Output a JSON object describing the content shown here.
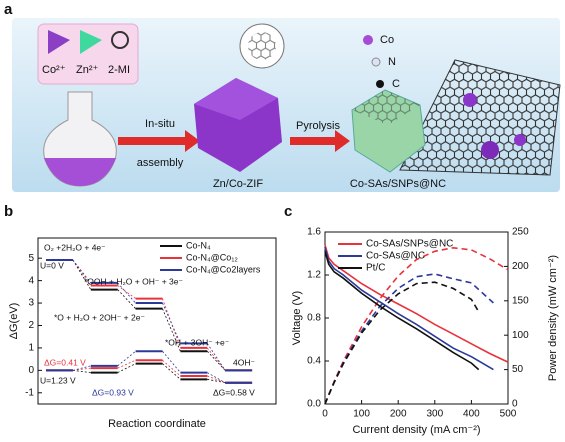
{
  "figure": {
    "panel_a": {
      "label": "a",
      "ion_co": "Co²⁺",
      "ion_zn": "Zn²⁺",
      "linker": "2-MI",
      "step1_top": "In-situ",
      "step1_bottom": "assembly",
      "zif": "Zn/Co-ZIF",
      "step2": "Pyrolysis",
      "product": "Co-SAs/SNPs@NC",
      "legend_co": "Co",
      "legend_n": "N",
      "legend_c": "C"
    }
  },
  "chart_data": [
    {
      "type": "step",
      "label": "b",
      "xlabel": "Reaction coordinate",
      "ylabel": "ΔG(eV)",
      "ylim": [
        -1.5,
        5.9
      ],
      "yticks": [
        -1,
        0,
        1,
        2,
        3,
        4,
        5
      ],
      "series": [
        {
          "name": "Co-N₄",
          "color": "#111111",
          "values": [
            4.92,
            3.6,
            2.75,
            0.85,
            0
          ],
          "values_u123": [
            0,
            -0.1,
            0.3,
            -0.4,
            -0.55
          ]
        },
        {
          "name": "Co-N₄@Co₁₂",
          "color": "#e8323c",
          "values": [
            4.92,
            3.78,
            3.2,
            1.0,
            0
          ],
          "values_u123": [
            0,
            0.1,
            0.45,
            -0.25,
            -0.55
          ]
        },
        {
          "name": "Co-N₄@Co2layers",
          "color": "#2b3a9a",
          "values": [
            4.92,
            3.9,
            3.0,
            1.2,
            0
          ],
          "values_u123": [
            0,
            0.2,
            0.85,
            -0.1,
            -0.55
          ]
        }
      ],
      "annotations": [
        {
          "text": "O₂ +2H₂O + 4e⁻",
          "color": "#111111"
        },
        {
          "text": "U=0 V",
          "color": "#111111"
        },
        {
          "text": "*OOH + H₂O + OH⁻ + 3e⁻",
          "color": "#111111"
        },
        {
          "text": "*O + H₂O + 2OH⁻ + 2e⁻",
          "color": "#111111"
        },
        {
          "text": "*OH + 3OH⁻ +e⁻",
          "color": "#111111"
        },
        {
          "text": "4OH⁻",
          "color": "#111111"
        },
        {
          "text": "ΔG=0.41 V",
          "color": "#e8323c"
        },
        {
          "text": "ΔG=0.93 V",
          "color": "#2b3a9a"
        },
        {
          "text": "ΔG=0.58 V",
          "color": "#111111"
        },
        {
          "text": "U=1.23 V",
          "color": "#111111"
        }
      ]
    },
    {
      "type": "line",
      "label": "c",
      "xlabel": "Current density (mA cm⁻²)",
      "ylabel": "Voltage (V)",
      "y2label": "Power density (mW cm⁻²)",
      "xlim": [
        0,
        500
      ],
      "xticks": [
        0,
        100,
        200,
        300,
        400,
        500
      ],
      "ylim": [
        0,
        1.6
      ],
      "yticks": [
        {
          "value": 0,
          "label": "0.0"
        },
        0.4,
        0.8,
        1.2,
        1.6
      ],
      "y2lim": [
        0,
        250
      ],
      "y2ticks": [
        0,
        50,
        100,
        150,
        200,
        250
      ],
      "series": [
        {
          "name": "Co-SAs/SNPs@NC",
          "color": "#e8323c",
          "x": [
            0,
            10,
            25,
            50,
            100,
            150,
            200,
            250,
            300,
            350,
            400,
            450,
            500
          ],
          "voltage": [
            1.48,
            1.36,
            1.3,
            1.24,
            1.12,
            1.02,
            0.93,
            0.84,
            0.74,
            0.65,
            0.56,
            0.47,
            0.39
          ],
          "power": [
            0,
            13.6,
            32.5,
            62,
            112,
            153,
            186,
            210,
            222,
            227,
            224,
            211,
            195
          ]
        },
        {
          "name": "Co-SAs@NC",
          "color": "#2b3a9a",
          "x": [
            0,
            10,
            25,
            50,
            100,
            150,
            200,
            250,
            300,
            350,
            400,
            460
          ],
          "voltage": [
            1.46,
            1.33,
            1.26,
            1.2,
            1.06,
            0.95,
            0.84,
            0.74,
            0.63,
            0.52,
            0.44,
            0.32
          ],
          "power": [
            0,
            13,
            31.5,
            60,
            106,
            142,
            168,
            185,
            189,
            182,
            176,
            147
          ]
        },
        {
          "name": "Pt/C",
          "color": "#111111",
          "x": [
            0,
            10,
            25,
            50,
            100,
            150,
            200,
            250,
            300,
            350,
            400,
            420
          ],
          "voltage": [
            1.42,
            1.3,
            1.23,
            1.17,
            1.03,
            0.91,
            0.8,
            0.7,
            0.59,
            0.48,
            0.38,
            0.32
          ],
          "power": [
            0,
            13,
            31,
            58.5,
            103,
            136.5,
            160,
            175,
            177,
            168,
            152,
            134
          ]
        }
      ]
    }
  ]
}
